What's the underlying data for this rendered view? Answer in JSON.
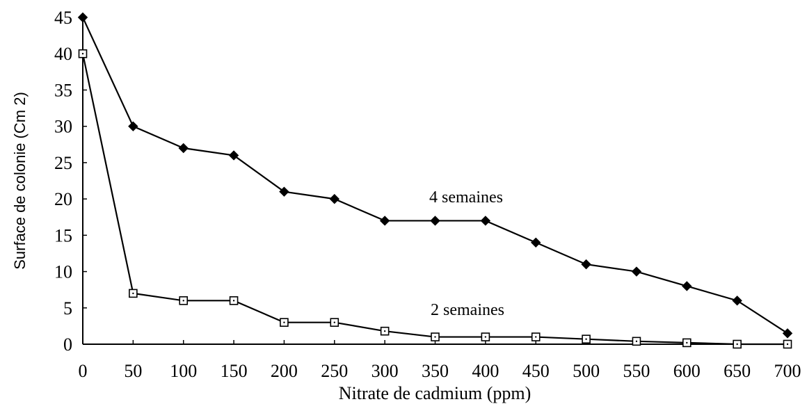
{
  "chart_data": {
    "type": "line",
    "title": "",
    "xlabel": "Nitrate de cadmium (ppm)",
    "ylabel": "Surface de colonie (Cm 2)",
    "xlim": [
      0,
      700
    ],
    "ylim": [
      0,
      45
    ],
    "x_ticks": [
      0,
      50,
      100,
      150,
      200,
      250,
      300,
      350,
      400,
      450,
      500,
      550,
      600,
      650,
      700
    ],
    "y_ticks": [
      0,
      5,
      10,
      15,
      20,
      25,
      30,
      35,
      40,
      45
    ],
    "grid": false,
    "legend": "none",
    "x": [
      0,
      50,
      100,
      150,
      200,
      250,
      300,
      350,
      400,
      450,
      500,
      550,
      600,
      650,
      700
    ],
    "series": [
      {
        "name": "4 semaines",
        "marker": "filled-diamond",
        "values": [
          45,
          30,
          27,
          26,
          21,
          20,
          17,
          17,
          17,
          14,
          11,
          10,
          8,
          6,
          1.5
        ]
      },
      {
        "name": "2 semaines",
        "marker": "open-square",
        "values": [
          40,
          7,
          6,
          6,
          3,
          3,
          1.8,
          1,
          1,
          1,
          0.7,
          0.4,
          0.2,
          0,
          0
        ]
      }
    ]
  }
}
